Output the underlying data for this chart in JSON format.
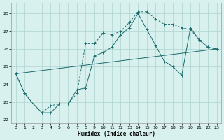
{
  "xlabel": "Humidex (Indice chaleur)",
  "xlim": [
    -0.5,
    23.5
  ],
  "ylim": [
    21.8,
    28.6
  ],
  "yticks": [
    22,
    23,
    24,
    25,
    26,
    27,
    28
  ],
  "xticks": [
    0,
    1,
    2,
    3,
    4,
    5,
    6,
    7,
    8,
    9,
    10,
    11,
    12,
    13,
    14,
    15,
    16,
    17,
    18,
    19,
    20,
    21,
    22,
    23
  ],
  "background_color": "#d8f0ee",
  "grid_color": "#aed4d0",
  "line_color": "#1a6b6b",
  "line1_x": [
    0,
    1,
    2,
    3,
    4,
    5,
    6,
    7,
    8,
    9,
    10,
    11,
    12,
    13,
    14,
    15,
    16,
    17,
    18,
    19,
    20,
    21,
    22,
    23
  ],
  "line1_y": [
    24.6,
    23.5,
    22.9,
    22.4,
    22.8,
    22.9,
    22.9,
    23.5,
    26.3,
    26.3,
    26.9,
    26.8,
    27.0,
    27.5,
    28.1,
    28.1,
    27.7,
    27.4,
    27.4,
    27.2,
    27.1,
    26.5,
    26.1,
    26.0
  ],
  "line2_x": [
    0,
    1,
    2,
    3,
    4,
    5,
    6,
    7,
    8,
    9,
    10,
    11,
    12,
    13,
    14,
    15,
    16,
    17,
    18,
    19,
    20,
    21,
    22,
    23
  ],
  "line2_y": [
    24.6,
    23.5,
    22.9,
    22.4,
    22.4,
    22.9,
    22.9,
    23.7,
    23.8,
    25.6,
    25.8,
    26.1,
    26.8,
    27.2,
    28.0,
    27.1,
    26.2,
    25.3,
    25.0,
    24.5,
    27.2,
    26.5,
    26.1,
    26.0
  ],
  "line3_x": [
    0,
    23
  ],
  "line3_y": [
    24.6,
    26.0
  ]
}
